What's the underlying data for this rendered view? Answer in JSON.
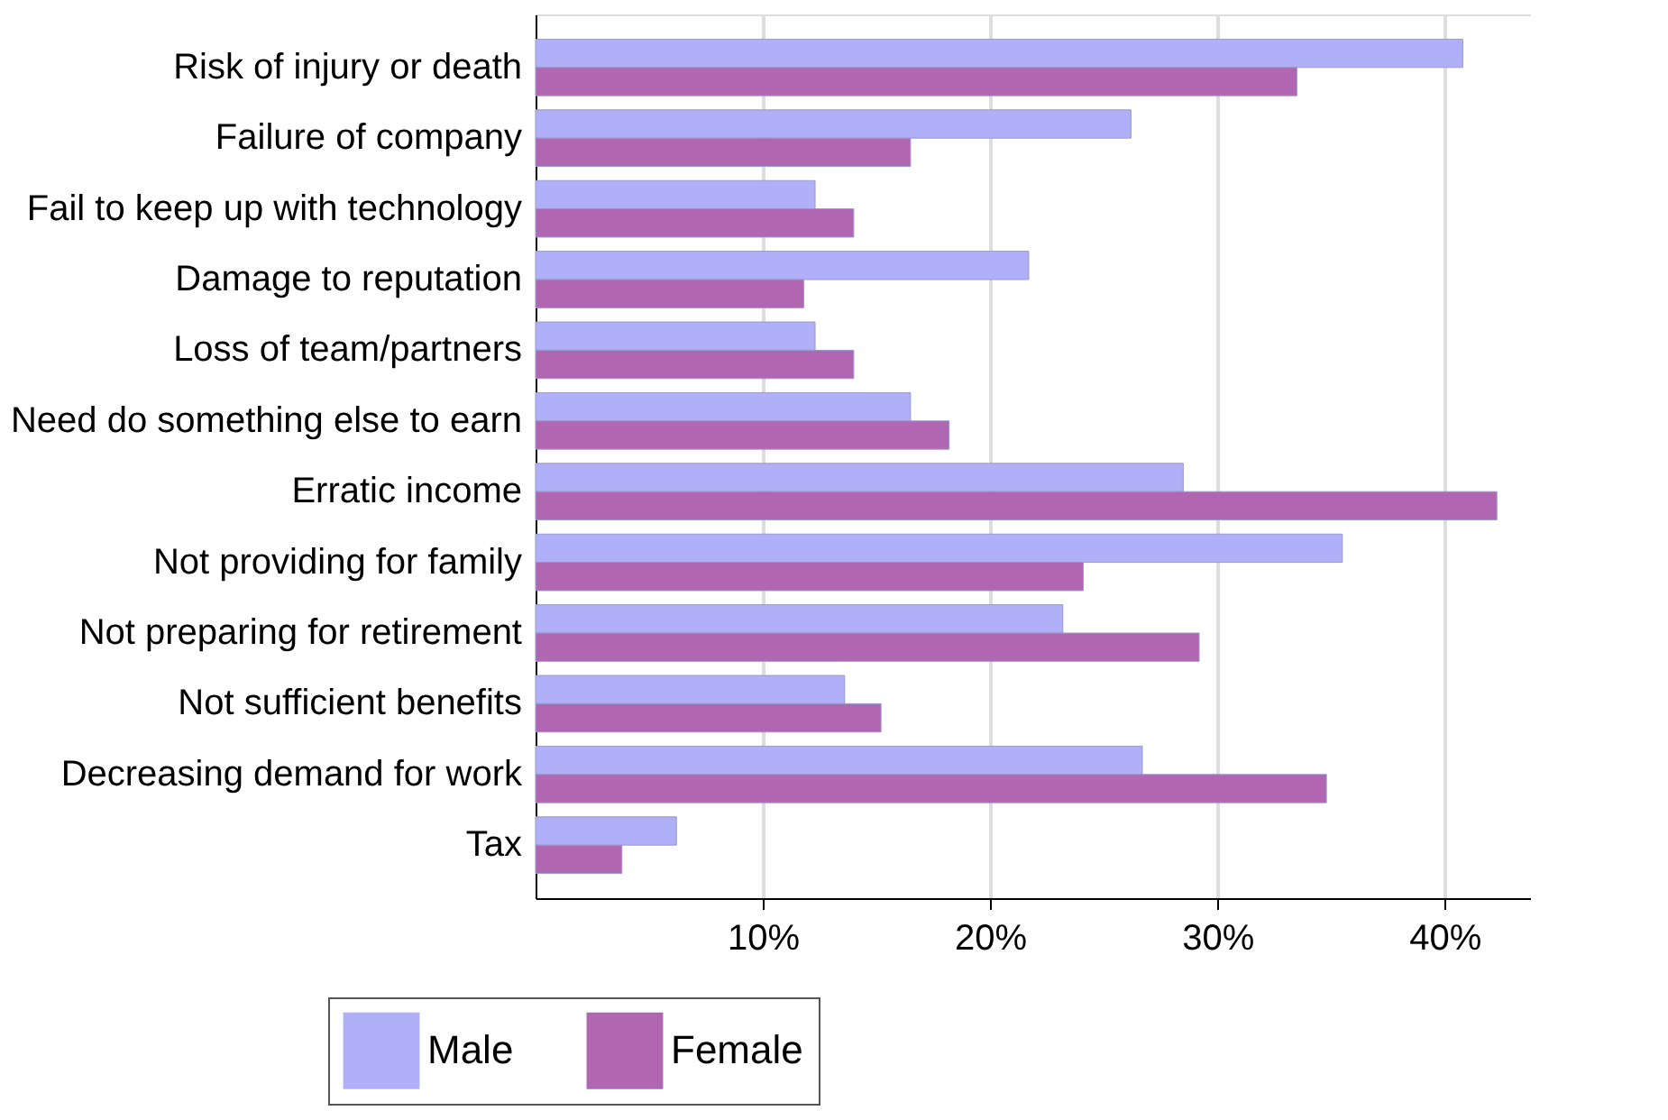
{
  "chart_data": {
    "type": "bar",
    "orientation": "horizontal",
    "categories": [
      "Risk of injury or death",
      "Failure of company",
      "Fail to keep up with technology",
      "Damage to reputation",
      "Loss of team/partners",
      "Need do something else to earn",
      "Erratic income",
      "Not providing for family",
      "Not preparing for retirement",
      "Not sufficient benefits",
      "Decreasing demand for work",
      "Tax"
    ],
    "series": [
      {
        "name": "Male",
        "color": "#b0b0f8",
        "values": [
          40.8,
          26.2,
          12.3,
          21.7,
          12.3,
          16.5,
          28.5,
          35.5,
          23.2,
          13.6,
          26.7,
          6.2
        ]
      },
      {
        "name": "Female",
        "color": "#b066b0",
        "values": [
          33.5,
          16.5,
          14.0,
          11.8,
          14.0,
          18.2,
          42.3,
          24.1,
          29.2,
          15.2,
          34.8,
          3.8
        ]
      }
    ],
    "xlim": [
      0,
      43.8
    ],
    "xticks": [
      {
        "value": 10,
        "label": "10%"
      },
      {
        "value": 20,
        "label": "20%"
      },
      {
        "value": 30,
        "label": "30%"
      },
      {
        "value": 40,
        "label": "40%"
      }
    ],
    "grid": "x",
    "legend": "bottom"
  }
}
